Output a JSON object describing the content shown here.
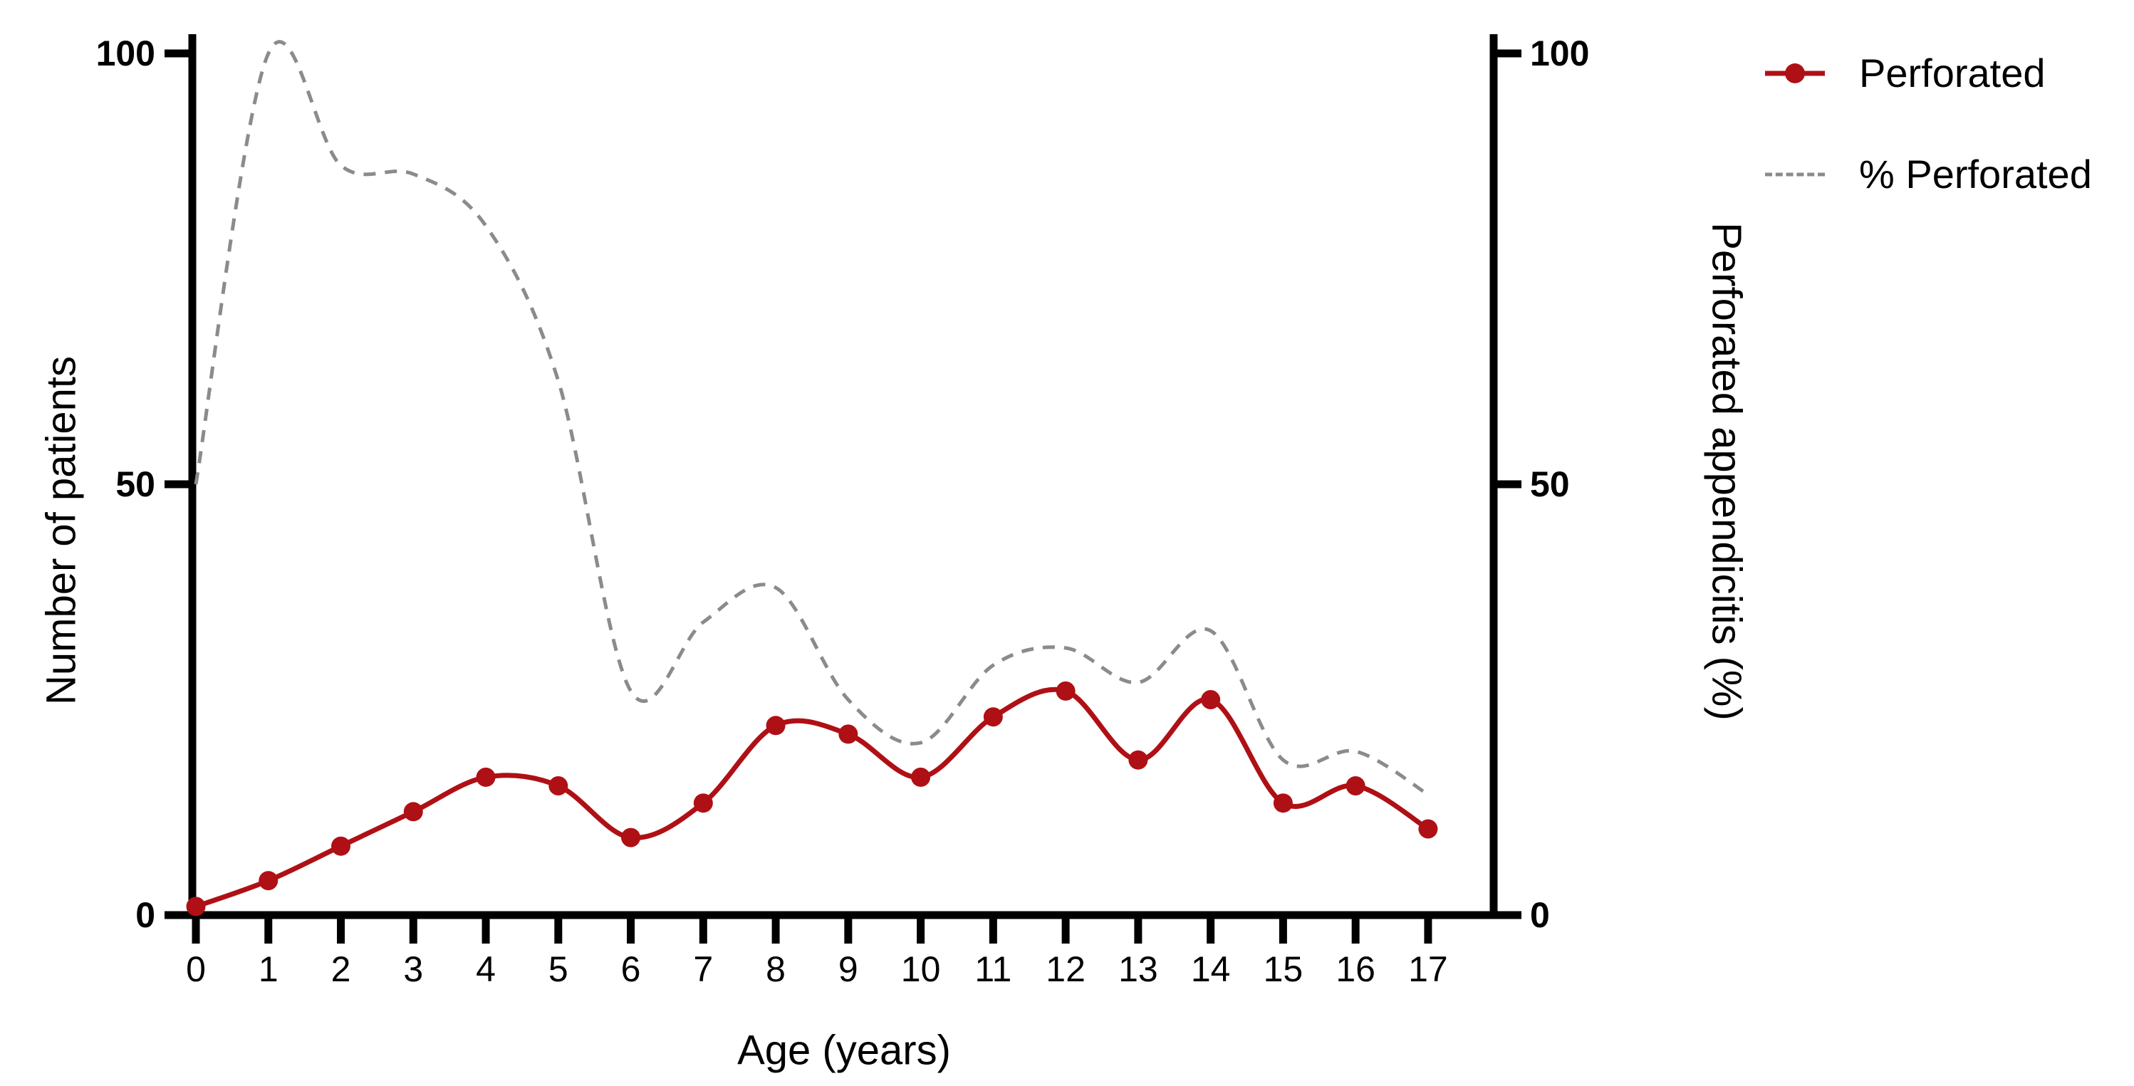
{
  "chart_data": {
    "type": "line",
    "title": "",
    "xlabel": "Age (years)",
    "ylabel_left": "Number of patients",
    "ylabel_right": "Perforated appendicitis (%)",
    "x": [
      0,
      1,
      2,
      3,
      4,
      5,
      6,
      7,
      8,
      9,
      10,
      11,
      12,
      13,
      14,
      15,
      16,
      17
    ],
    "x_tick_labels": [
      "0",
      "1",
      "2",
      "3",
      "4",
      "5",
      "6",
      "7",
      "8",
      "9",
      "10",
      "11",
      "12",
      "13",
      "14",
      "15",
      "16",
      "17"
    ],
    "y_ticks": [
      0,
      50,
      100
    ],
    "y_tick_labels": [
      "0",
      "50",
      "100"
    ],
    "ylim_left": [
      0,
      100
    ],
    "ylim_right": [
      0,
      100
    ],
    "grid": false,
    "legend_position": "top-right",
    "smoothing": true,
    "series": [
      {
        "name": "Perforated",
        "axis": "left",
        "style": "solid",
        "marker": "circle",
        "color": "#AF1015",
        "values": [
          1,
          4,
          8,
          12,
          16,
          15,
          9,
          13,
          22,
          21,
          16,
          23,
          26,
          18,
          25,
          13,
          15,
          10
        ]
      },
      {
        "name": "% Perforated",
        "axis": "right",
        "style": "dashed",
        "marker": "none",
        "color": "#8B8B8B",
        "values": [
          50,
          100,
          87,
          86,
          80,
          62,
          26,
          34,
          38,
          25,
          20,
          29,
          31,
          27,
          33,
          18,
          19,
          14
        ]
      }
    ]
  },
  "colors": {
    "axis": "#000000",
    "background": "#FFFFFF",
    "series_red": "#AF1015",
    "series_gray": "#8B8B8B"
  }
}
